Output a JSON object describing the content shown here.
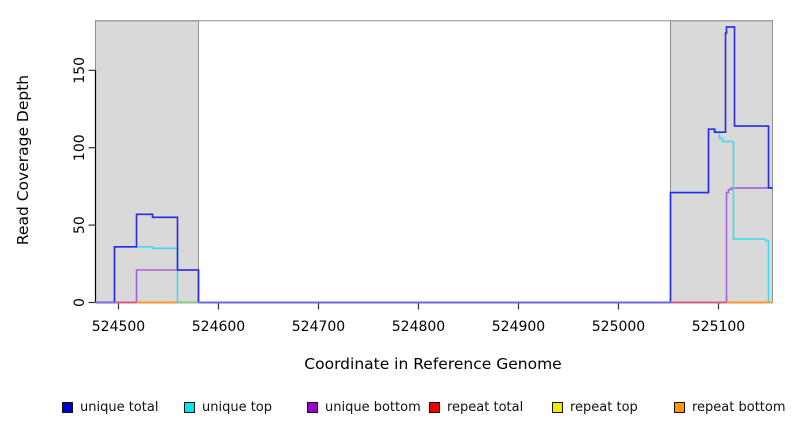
{
  "chart_data": {
    "type": "line",
    "title": "",
    "xlabel": "Coordinate in Reference Genome",
    "ylabel": "Read Coverage Depth",
    "xlim": [
      524477,
      525154
    ],
    "ylim": [
      0,
      182
    ],
    "grid": false,
    "legend_position": "bottom",
    "x_ticks": [
      524500,
      524600,
      524700,
      524800,
      524900,
      525000,
      525100
    ],
    "y_ticks": [
      0,
      50,
      100,
      150
    ],
    "shaded_regions": [
      {
        "from": 524477,
        "to": 524580,
        "top": 182,
        "fill": "#d9d9d9",
        "border": "#909090"
      },
      {
        "from": 525052,
        "to": 525154,
        "top": 182,
        "fill": "#d9d9d9",
        "border": "#909090"
      }
    ],
    "series": [
      {
        "name": "repeat top",
        "color": "#f5e900",
        "steps": [
          [
            524477,
            0
          ]
        ],
        "end": 525154
      },
      {
        "name": "repeat total",
        "color": "#cc3355",
        "steps": [
          [
            524477,
            0
          ]
        ],
        "end": 525154
      },
      {
        "name": "repeat bottom",
        "color": "#ff9a26",
        "steps": [
          [
            524477,
            0
          ]
        ],
        "end": 525154
      },
      {
        "name": "unique bottom",
        "color": "#a95fd5",
        "steps": [
          [
            524477,
            0
          ],
          [
            524518,
            21
          ],
          [
            524580,
            0
          ],
          [
            525108,
            71
          ],
          [
            525110,
            73
          ],
          [
            525113,
            74
          ]
        ],
        "end": 525154
      },
      {
        "name": "unique top",
        "color": "#3fdcec",
        "steps": [
          [
            524477,
            0
          ],
          [
            524496,
            36
          ],
          [
            524534,
            35
          ],
          [
            524559,
            0
          ],
          [
            525052,
            71
          ],
          [
            525090,
            112
          ],
          [
            525097,
            110
          ],
          [
            525101,
            106
          ],
          [
            525104,
            104
          ],
          [
            525115,
            41
          ],
          [
            525147,
            40
          ],
          [
            525150,
            0
          ]
        ],
        "end": 525154
      },
      {
        "name": "unique total",
        "color": "#2929e6",
        "steps": [
          [
            524477,
            0
          ],
          [
            524496,
            36
          ],
          [
            524518,
            57
          ],
          [
            524534,
            55
          ],
          [
            524559,
            21
          ],
          [
            524580,
            0
          ],
          [
            525052,
            71
          ],
          [
            525090,
            112
          ],
          [
            525096,
            110
          ],
          [
            525107,
            174
          ],
          [
            525108,
            178
          ],
          [
            525116,
            114
          ],
          [
            525150,
            74
          ]
        ],
        "end": 525154
      }
    ],
    "baseline_overlap_segments": [
      {
        "from": 524477,
        "to": 524496,
        "color": "#7b6fe0"
      },
      {
        "from": 524496,
        "to": 524518,
        "color": "#d05a80"
      },
      {
        "from": 524518,
        "to": 524557,
        "color": "#ff9a26"
      },
      {
        "from": 524557,
        "to": 524580,
        "color": "#84ca84"
      },
      {
        "from": 524580,
        "to": 525052,
        "color": "#6f66e2"
      },
      {
        "from": 525052,
        "to": 525108,
        "color": "#d05a80"
      },
      {
        "from": 525108,
        "to": 525154,
        "color": "#ff9a26"
      }
    ],
    "legend": [
      {
        "label": "unique total",
        "color": "#0000cc"
      },
      {
        "label": "unique top",
        "color": "#00e5ee"
      },
      {
        "label": "unique bottom",
        "color": "#9900cc"
      },
      {
        "label": "repeat total",
        "color": "#ee0000"
      },
      {
        "label": "repeat top",
        "color": "#f5e900"
      },
      {
        "label": "repeat bottom",
        "color": "#ff9800"
      }
    ]
  }
}
